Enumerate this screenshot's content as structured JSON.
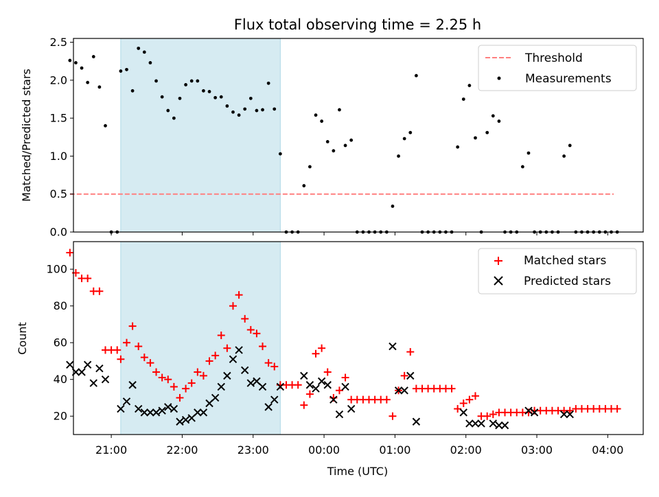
{
  "title": "Flux total observing time = 2.25 h",
  "xlabel": "Time (UTC)",
  "x_ticks": [
    "21:00",
    "22:00",
    "23:00",
    "00:00",
    "01:00",
    "02:00",
    "03:00",
    "04:00"
  ],
  "colors": {
    "threshold": "#ff7f7f",
    "highlight": "#add8e6",
    "matched": "#ff0000",
    "predicted": "#000000",
    "measure": "#000000"
  },
  "chart_data": [
    {
      "type": "scatter",
      "ylabel": "Matched/Predicted stars",
      "xlim": [
        "20:28",
        "04:30"
      ],
      "ylim": [
        0,
        2.55
      ],
      "y_ticks": [
        "0.0",
        "0.5",
        "1.0",
        "1.5",
        "2.0",
        "2.5"
      ],
      "highlight_span": [
        "21:08",
        "23:23"
      ],
      "threshold": {
        "name": "Threshold",
        "value": 0.5,
        "x": [
          "20:25",
          "04:05"
        ]
      },
      "legend_position": "top-right",
      "series": [
        {
          "name": "Measurements",
          "x": [
            "20:25",
            "20:30",
            "20:35",
            "20:40",
            "20:45",
            "20:50",
            "20:55",
            "21:00",
            "21:05",
            "21:08",
            "21:13",
            "21:18",
            "21:23",
            "21:28",
            "21:33",
            "21:38",
            "21:43",
            "21:48",
            "21:53",
            "21:58",
            "22:03",
            "22:08",
            "22:13",
            "22:18",
            "22:23",
            "22:28",
            "22:33",
            "22:38",
            "22:43",
            "22:48",
            "22:53",
            "22:58",
            "23:03",
            "23:08",
            "23:13",
            "23:18",
            "23:23",
            "23:28",
            "23:33",
            "23:38",
            "23:43",
            "23:48",
            "23:53",
            "23:58",
            "00:03",
            "00:08",
            "00:13",
            "00:18",
            "00:23",
            "00:28",
            "00:33",
            "00:38",
            "00:43",
            "00:48",
            "00:53",
            "00:58",
            "01:03",
            "01:08",
            "01:13",
            "01:18",
            "01:23",
            "01:28",
            "01:33",
            "01:38",
            "01:43",
            "01:48",
            "01:53",
            "01:58",
            "02:03",
            "02:08",
            "02:13",
            "02:18",
            "02:23",
            "02:28",
            "02:33",
            "02:38",
            "02:43",
            "02:48",
            "02:53",
            "02:58",
            "03:03",
            "03:08",
            "03:13",
            "03:18",
            "03:23",
            "03:28",
            "03:33",
            "03:38",
            "03:43",
            "03:48",
            "03:53",
            "03:58",
            "04:03",
            "04:08"
          ],
          "y": [
            2.26,
            2.23,
            2.16,
            1.97,
            2.31,
            1.91,
            1.4,
            0,
            0,
            2.12,
            2.14,
            1.86,
            2.42,
            2.37,
            2.23,
            1.99,
            1.78,
            1.6,
            1.5,
            1.76,
            1.94,
            1.99,
            1.99,
            1.86,
            1.85,
            1.77,
            1.78,
            1.66,
            1.58,
            1.54,
            1.62,
            1.76,
            1.6,
            1.61,
            1.96,
            1.62,
            1.03,
            0,
            0,
            0,
            0.61,
            0.86,
            1.54,
            1.46,
            1.19,
            1.07,
            1.61,
            1.14,
            1.21,
            0,
            0,
            0,
            0,
            0,
            0,
            0.34,
            1.0,
            1.23,
            1.31,
            2.06,
            0,
            0,
            0,
            0,
            0,
            0,
            1.12,
            1.75,
            1.93,
            1.24,
            0,
            1.31,
            1.53,
            1.46,
            0,
            0,
            0,
            0.86,
            1.04,
            0,
            0,
            0,
            0,
            0,
            1.0,
            1.14,
            0,
            0,
            0,
            0,
            0,
            0,
            0,
            0
          ]
        }
      ]
    },
    {
      "type": "scatter",
      "ylabel": "Count",
      "xlim": [
        "20:28",
        "04:30"
      ],
      "ylim": [
        10,
        115
      ],
      "y_ticks": [
        "20",
        "40",
        "60",
        "80",
        "100"
      ],
      "highlight_span": [
        "21:08",
        "23:23"
      ],
      "legend_position": "top-right",
      "series": [
        {
          "name": "Matched stars",
          "marker": "plus",
          "x": [
            "20:25",
            "20:30",
            "20:35",
            "20:40",
            "20:45",
            "20:50",
            "20:55",
            "21:00",
            "21:05",
            "21:08",
            "21:13",
            "21:18",
            "21:23",
            "21:28",
            "21:33",
            "21:38",
            "21:43",
            "21:48",
            "21:53",
            "21:58",
            "22:03",
            "22:08",
            "22:13",
            "22:18",
            "22:23",
            "22:28",
            "22:33",
            "22:38",
            "22:43",
            "22:48",
            "22:53",
            "22:58",
            "23:03",
            "23:08",
            "23:13",
            "23:18",
            "23:23",
            "23:28",
            "23:33",
            "23:38",
            "23:43",
            "23:48",
            "23:53",
            "23:58",
            "00:03",
            "00:08",
            "00:13",
            "00:18",
            "00:23",
            "00:28",
            "00:33",
            "00:38",
            "00:43",
            "00:48",
            "00:53",
            "00:58",
            "01:03",
            "01:08",
            "01:13",
            "01:18",
            "01:23",
            "01:28",
            "01:33",
            "01:38",
            "01:43",
            "01:48",
            "01:53",
            "01:58",
            "02:03",
            "02:08",
            "02:13",
            "02:18",
            "02:23",
            "02:28",
            "02:33",
            "02:38",
            "02:43",
            "02:48",
            "02:53",
            "02:58",
            "03:03",
            "03:08",
            "03:13",
            "03:18",
            "03:23",
            "03:28",
            "03:33",
            "03:38",
            "03:43",
            "03:48",
            "03:53",
            "03:58",
            "04:03",
            "04:08"
          ],
          "y": [
            109,
            98,
            95,
            95,
            88,
            88,
            56,
            56,
            56,
            51,
            60,
            69,
            58,
            52,
            49,
            44,
            41,
            40,
            36,
            30,
            35,
            38,
            44,
            42,
            50,
            53,
            64,
            57,
            80,
            86,
            73,
            67,
            65,
            58,
            49,
            47,
            37,
            37,
            37,
            37,
            26,
            32,
            54,
            57,
            44,
            30,
            34,
            41,
            29,
            29,
            29,
            29,
            29,
            29,
            29,
            20,
            34,
            42,
            55,
            35,
            35,
            35,
            35,
            35,
            35,
            35,
            24,
            27,
            29,
            31,
            20,
            20,
            21,
            22,
            22,
            22,
            22,
            22,
            22,
            23,
            23,
            23,
            23,
            23,
            23,
            23,
            24,
            24,
            24,
            24,
            24,
            24,
            24,
            24
          ]
        },
        {
          "name": "Predicted stars",
          "marker": "x",
          "x": [
            "20:25",
            "20:30",
            "20:35",
            "20:40",
            "20:45",
            "20:50",
            "20:55",
            "21:08",
            "21:13",
            "21:18",
            "21:23",
            "21:28",
            "21:33",
            "21:38",
            "21:43",
            "21:48",
            "21:53",
            "21:58",
            "22:03",
            "22:08",
            "22:13",
            "22:18",
            "22:23",
            "22:28",
            "22:33",
            "22:38",
            "22:43",
            "22:48",
            "22:53",
            "22:58",
            "23:03",
            "23:08",
            "23:13",
            "23:18",
            "23:23",
            "23:43",
            "23:48",
            "23:53",
            "23:58",
            "00:03",
            "00:08",
            "00:13",
            "00:18",
            "00:23",
            "00:58",
            "01:03",
            "01:08",
            "01:13",
            "01:18",
            "01:58",
            "02:03",
            "02:08",
            "02:13",
            "02:23",
            "02:28",
            "02:33",
            "02:53",
            "02:58",
            "03:23",
            "03:28"
          ],
          "y": [
            48,
            44,
            44,
            48,
            38,
            46,
            40,
            24,
            28,
            37,
            24,
            22,
            22,
            22,
            23,
            25,
            24,
            17,
            18,
            19,
            22,
            22,
            27,
            30,
            36,
            42,
            51,
            56,
            45,
            38,
            39,
            36,
            25,
            29,
            36,
            42,
            37,
            35,
            39,
            37,
            29,
            21,
            36,
            24,
            58,
            34,
            34,
            42,
            17,
            22,
            16,
            16,
            16,
            16,
            15,
            15,
            23,
            22,
            21,
            21
          ]
        }
      ]
    }
  ],
  "legend_markers": {
    "threshold": "dash",
    "measure": "dot",
    "matched": "plus",
    "predicted": "x"
  }
}
